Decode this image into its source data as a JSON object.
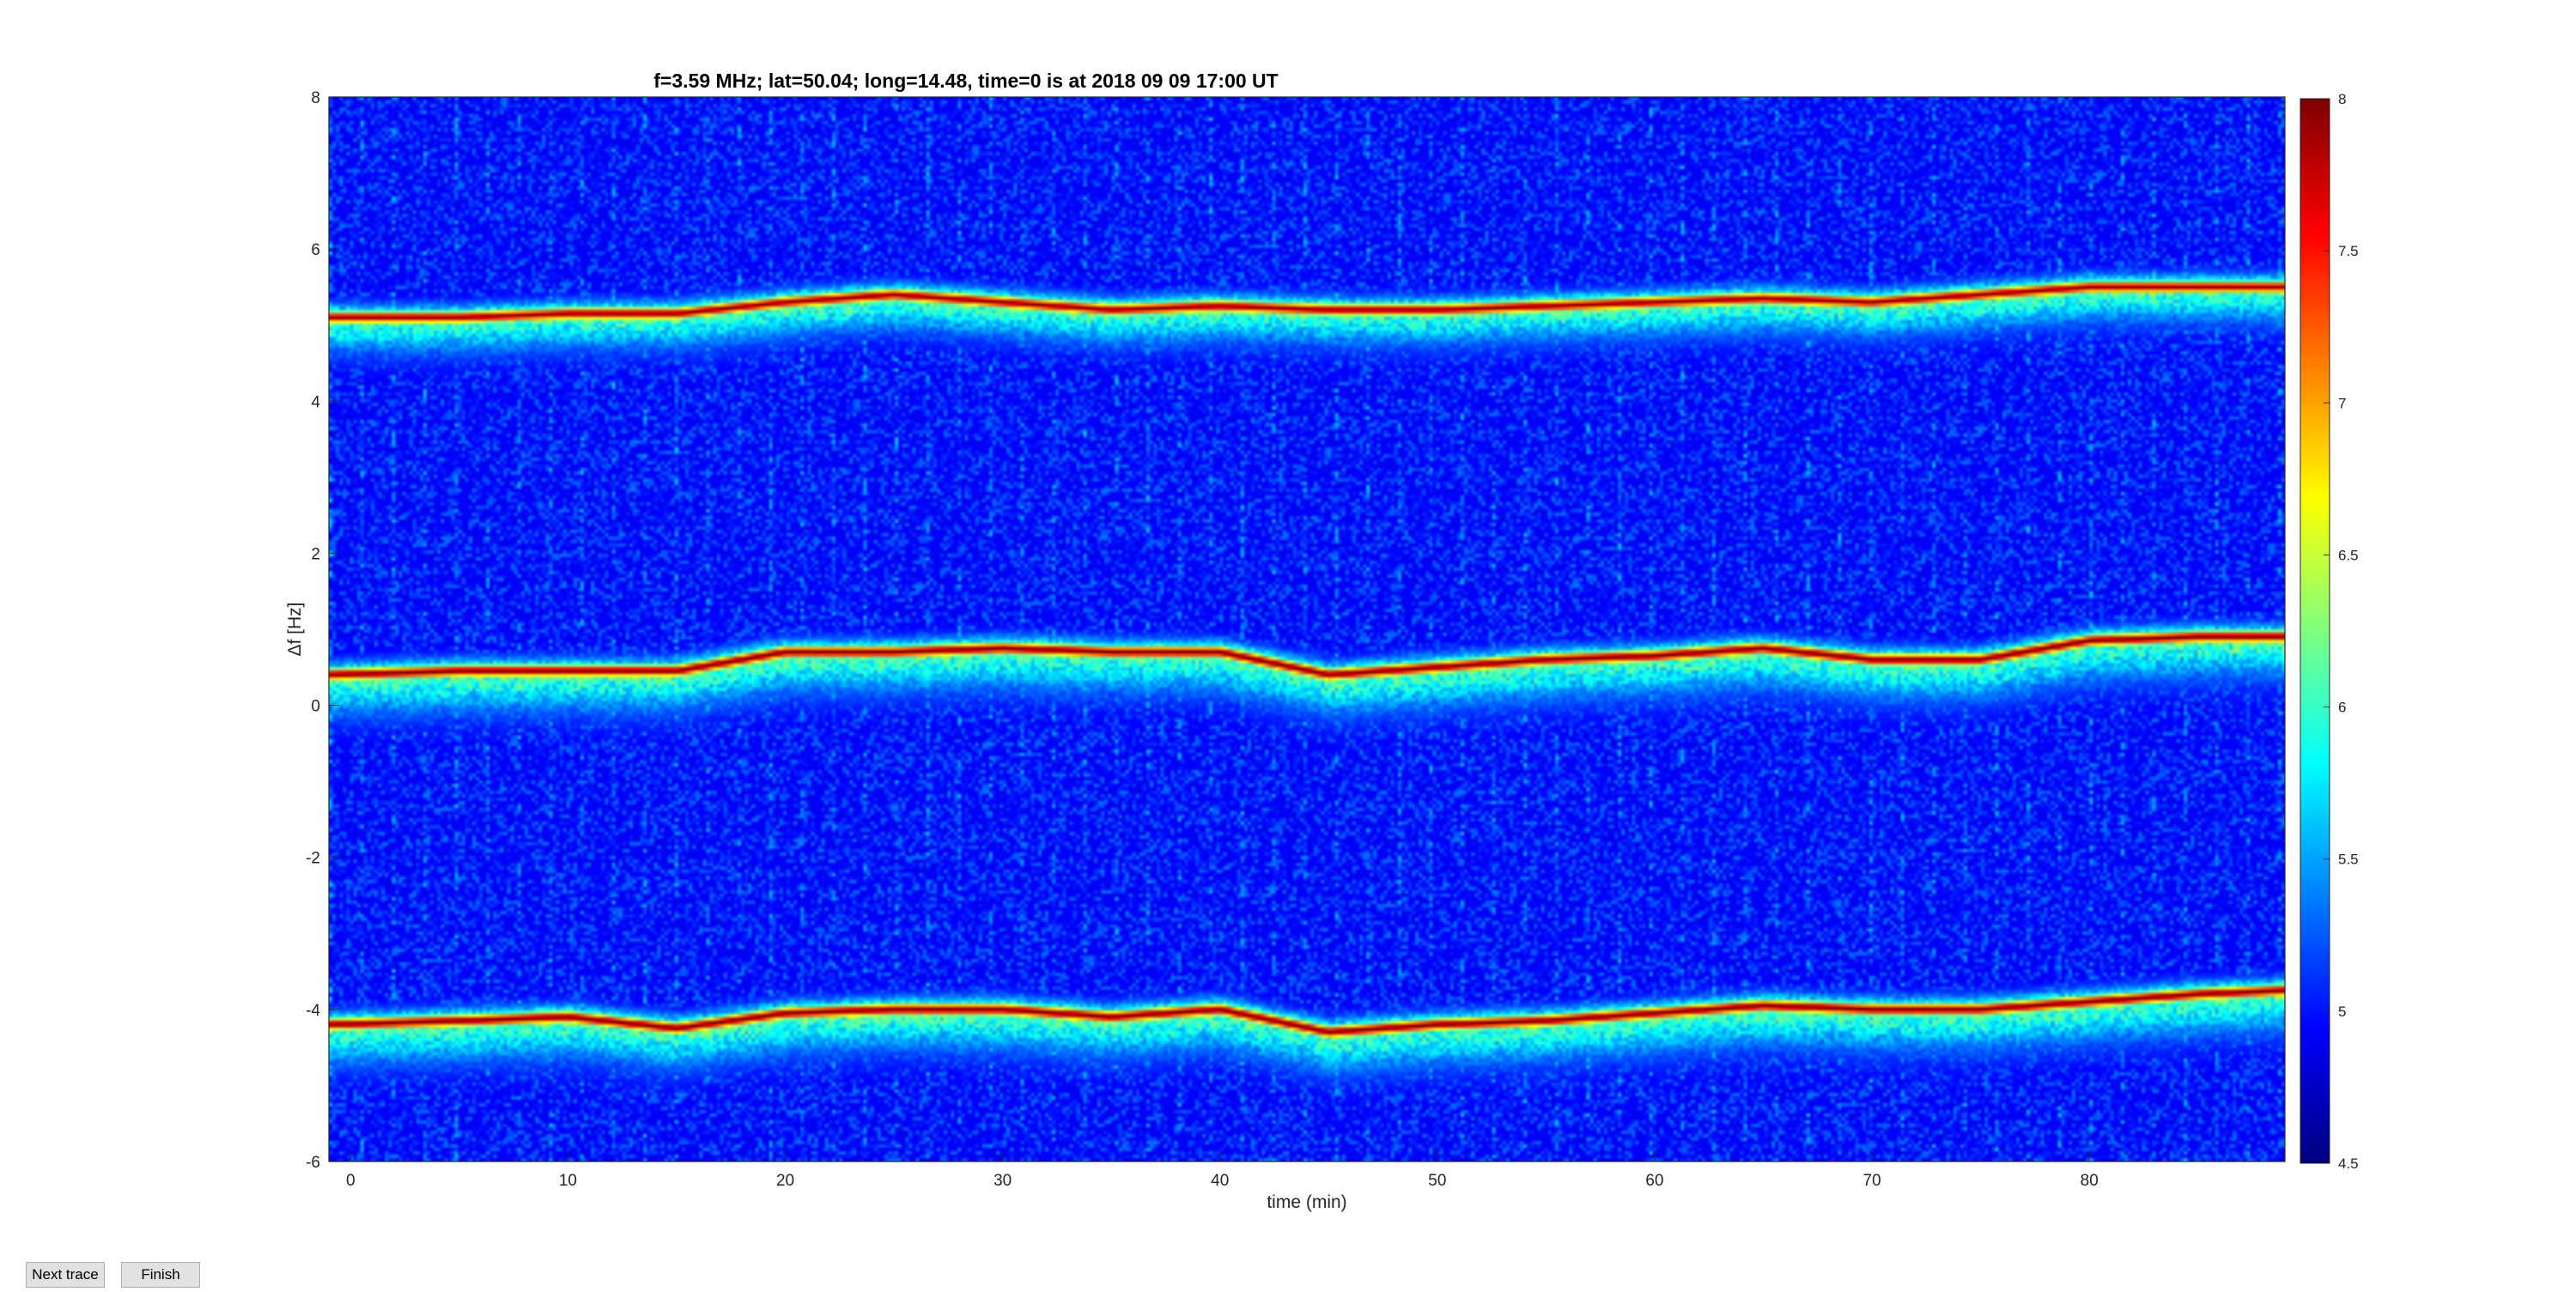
{
  "chart_data": {
    "type": "heatmap",
    "title": "f=3.59 MHz;  lat=50.04; long=14.48, time=0 is at 2018 09 09 17:00 UT",
    "xlabel": "time (min)",
    "ylabel": "Δf [Hz]",
    "xlim": [
      -1,
      89
    ],
    "ylim": [
      -6,
      8
    ],
    "x_ticks": [
      0,
      10,
      20,
      30,
      40,
      50,
      60,
      70,
      80
    ],
    "x_tick_labels": [
      "0",
      "10",
      "20",
      "30",
      "40",
      "50",
      "60",
      "70",
      "80"
    ],
    "y_ticks": [
      -6,
      -4,
      -2,
      0,
      2,
      4,
      6,
      8
    ],
    "y_tick_labels": [
      "-6",
      "-4",
      "-2",
      "0",
      "2",
      "4",
      "6",
      "8"
    ],
    "colormap": "jet",
    "clim": [
      4.5,
      8
    ],
    "colorbar_ticks": [
      4.5,
      5,
      5.5,
      6,
      6.5,
      7,
      7.5,
      8
    ],
    "colorbar_tick_labels": [
      "4.5",
      "5",
      "5.5",
      "6",
      "6.5",
      "7",
      "7.5",
      "8"
    ],
    "background_level": 4.9,
    "traces": [
      {
        "x": [
          -1,
          5,
          10,
          15,
          20,
          25,
          30,
          35,
          40,
          45,
          50,
          55,
          60,
          65,
          70,
          75,
          80,
          85,
          89
        ],
        "y": [
          5.1,
          5.1,
          5.15,
          5.15,
          5.3,
          5.4,
          5.3,
          5.2,
          5.25,
          5.2,
          5.2,
          5.25,
          5.3,
          5.35,
          5.3,
          5.4,
          5.5,
          5.5,
          5.5
        ],
        "peak": 7.8,
        "spread": 0.3
      },
      {
        "x": [
          -1,
          5,
          10,
          15,
          20,
          25,
          30,
          35,
          40,
          45,
          50,
          55,
          60,
          65,
          70,
          75,
          80,
          85,
          89
        ],
        "y": [
          0.4,
          0.45,
          0.45,
          0.45,
          0.7,
          0.7,
          0.75,
          0.7,
          0.7,
          0.4,
          0.5,
          0.6,
          0.65,
          0.75,
          0.6,
          0.6,
          0.85,
          0.9,
          0.9
        ],
        "peak": 7.9,
        "spread": 0.35
      },
      {
        "x": [
          -1,
          5,
          10,
          15,
          20,
          25,
          30,
          35,
          40,
          45,
          50,
          55,
          60,
          65,
          70,
          75,
          80,
          85,
          89
        ],
        "y": [
          -4.2,
          -4.15,
          -4.1,
          -4.25,
          -4.05,
          -4.0,
          -4.0,
          -4.1,
          -4.0,
          -4.3,
          -4.2,
          -4.15,
          -4.05,
          -3.95,
          -4.0,
          -4.0,
          -3.9,
          -3.8,
          -3.75
        ],
        "peak": 7.9,
        "spread": 0.35
      }
    ]
  },
  "buttons": {
    "next_trace": "Next trace",
    "finish": "Finish"
  }
}
